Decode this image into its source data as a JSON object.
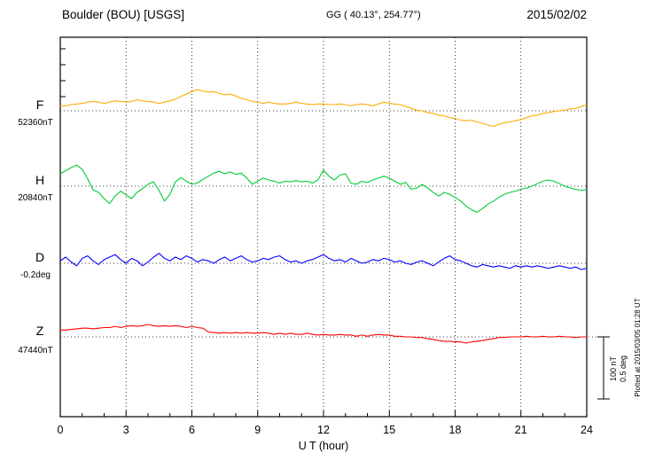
{
  "header": {
    "station": "Boulder (BOU)  [USGS]",
    "coords": "GG ( 40.13°, 254.77°)",
    "date": "2015/02/02"
  },
  "axis": {
    "xlabel": "U T (hour)",
    "x_ticks": [
      0,
      3,
      6,
      9,
      12,
      15,
      18,
      21,
      24
    ],
    "x_range": [
      0,
      24
    ],
    "x_minor_step_hours": 1,
    "grid": "dotted vertical at 3h intervals, dotted horizontal at each trace baseline"
  },
  "scale_bar": {
    "labels": [
      "100 nT",
      "0.5 deg"
    ]
  },
  "footer_note": "Plotted at 2015/03/05 01:28 UT",
  "chart_data": {
    "type": "line",
    "title": "Boulder (BOU) [USGS] magnetogram 2015/02/02",
    "xlabel": "U T (hour)",
    "x_start": 0,
    "x_step_hours": 0.25,
    "x_range": [
      0,
      24
    ],
    "scale": {
      "nT_per_div": 100,
      "deg_per_div": 0.5
    },
    "series": [
      {
        "name": "F",
        "label": "F",
        "baseline_label": "52360nT",
        "baseline_value": 52360,
        "unit": "nT",
        "color": "#ffaa00",
        "offsets": [
          8,
          8,
          10,
          11,
          12,
          14,
          15,
          14,
          12,
          14,
          16,
          15,
          14,
          15,
          18,
          16,
          15,
          14,
          12,
          14,
          16,
          19,
          23,
          27,
          31,
          34,
          32,
          30,
          31,
          28,
          26,
          27,
          24,
          20,
          18,
          15,
          14,
          12,
          14,
          12,
          11,
          11,
          12,
          14,
          12,
          11,
          10,
          11,
          11,
          10,
          10,
          11,
          10,
          8,
          10,
          11,
          10,
          8,
          11,
          14,
          12,
          11,
          10,
          7,
          4,
          1,
          0,
          -3,
          -4,
          -7,
          -8,
          -11,
          -12,
          -15,
          -16,
          -15,
          -18,
          -20,
          -23,
          -25,
          -22,
          -19,
          -18,
          -16,
          -14,
          -11,
          -8,
          -7,
          -4,
          -3,
          -1,
          0,
          1,
          3,
          4,
          7,
          10
        ]
      },
      {
        "name": "H",
        "label": "H",
        "baseline_label": "20840nT",
        "baseline_value": 20840,
        "unit": "nT",
        "color": "#00cc33",
        "offsets": [
          20,
          25,
          30,
          34,
          27,
          12,
          -6,
          -10,
          -20,
          -28,
          -16,
          -8,
          -14,
          -20,
          -10,
          -4,
          3,
          7,
          -7,
          -24,
          -13,
          7,
          14,
          8,
          3,
          5,
          11,
          16,
          21,
          24,
          20,
          23,
          19,
          21,
          13,
          3,
          8,
          13,
          10,
          8,
          5,
          8,
          7,
          9,
          7,
          8,
          5,
          10,
          26,
          16,
          10,
          18,
          20,
          5,
          3,
          8,
          6,
          10,
          13,
          16,
          13,
          8,
          3,
          6,
          -5,
          -3,
          3,
          -3,
          -10,
          -16,
          -10,
          -13,
          -18,
          -24,
          -32,
          -38,
          -42,
          -36,
          -29,
          -24,
          -18,
          -13,
          -10,
          -8,
          -5,
          -3,
          0,
          4,
          8,
          10,
          8,
          4,
          0,
          -3,
          -5,
          -7,
          -5
        ]
      },
      {
        "name": "D",
        "label": "D",
        "baseline_label": "-0.2deg",
        "baseline_value": -0.2,
        "unit": "deg",
        "color": "#0000ff",
        "offsets": [
          0.02,
          0.05,
          0.01,
          -0.02,
          0.04,
          0.06,
          0.02,
          -0.01,
          0.03,
          0.05,
          0.07,
          0.03,
          0.0,
          0.04,
          0.02,
          -0.02,
          0.01,
          0.05,
          0.08,
          0.04,
          0.02,
          0.05,
          0.03,
          0.06,
          0.04,
          0.01,
          0.03,
          0.02,
          0.0,
          0.03,
          0.05,
          0.02,
          0.04,
          0.06,
          0.03,
          0.01,
          0.02,
          0.04,
          0.03,
          0.05,
          0.06,
          0.03,
          0.01,
          0.02,
          0.0,
          0.02,
          0.03,
          0.05,
          0.07,
          0.04,
          0.02,
          0.03,
          0.01,
          0.04,
          0.02,
          0.0,
          0.01,
          0.03,
          0.02,
          0.04,
          0.03,
          0.01,
          0.02,
          0.0,
          -0.01,
          0.01,
          0.02,
          0.0,
          -0.02,
          0.01,
          0.04,
          0.06,
          0.03,
          0.02,
          0.0,
          -0.02,
          -0.03,
          -0.01,
          -0.02,
          -0.03,
          -0.02,
          -0.03,
          -0.04,
          -0.02,
          -0.03,
          -0.02,
          -0.03,
          -0.02,
          -0.03,
          -0.04,
          -0.03,
          -0.02,
          -0.03,
          -0.04,
          -0.03,
          -0.05,
          -0.04
        ]
      },
      {
        "name": "Z",
        "label": "Z",
        "baseline_label": "47440nT",
        "baseline_value": 47440,
        "unit": "nT",
        "color": "#ff0000",
        "offsets": [
          11,
          11,
          12,
          13,
          14,
          14,
          13,
          14,
          15,
          15,
          17,
          15,
          17,
          18,
          17,
          18,
          20,
          18,
          17,
          18,
          17,
          18,
          17,
          15,
          17,
          15,
          14,
          8,
          7,
          6,
          7,
          6,
          7,
          6,
          7,
          6,
          6,
          7,
          6,
          4,
          6,
          4,
          6,
          4,
          4,
          6,
          4,
          3,
          4,
          3,
          3,
          4,
          3,
          3,
          1,
          3,
          1,
          3,
          4,
          3,
          3,
          1,
          1,
          0,
          0,
          -1,
          -1,
          -3,
          -4,
          -6,
          -7,
          -7,
          -8,
          -8,
          -10,
          -8,
          -7,
          -6,
          -4,
          -3,
          -1,
          -1,
          0,
          0,
          0,
          1,
          0,
          0,
          1,
          0,
          0,
          1,
          0,
          0,
          -1,
          0,
          0
        ]
      }
    ]
  }
}
